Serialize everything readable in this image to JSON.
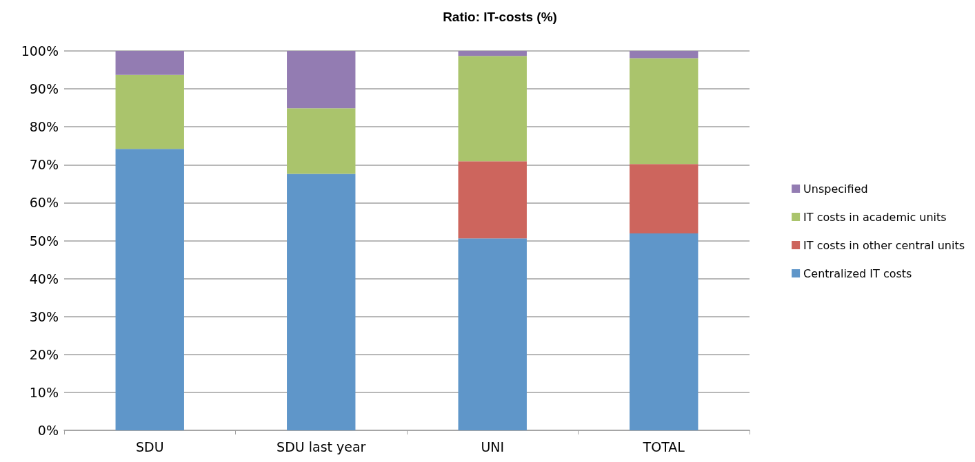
{
  "chart_data": {
    "type": "bar",
    "title": "Ratio: IT-costs (%)",
    "stacked": true,
    "categories": [
      "SDU",
      "SDU last year",
      "UNI",
      "TOTAL"
    ],
    "series": [
      {
        "name": "Centralized IT costs",
        "color": "#5f96c9",
        "values": [
          74.2,
          67.6,
          50.6,
          51.9
        ]
      },
      {
        "name": "IT costs in other central units",
        "color": "#cd655d",
        "values": [
          0,
          0,
          20.3,
          18.3
        ]
      },
      {
        "name": "IT costs in academic units",
        "color": "#aac46c",
        "values": [
          19.5,
          17.3,
          27.8,
          27.9
        ]
      },
      {
        "name": "Unspecified",
        "color": "#937cb2",
        "values": [
          6.3,
          15.1,
          1.3,
          1.9
        ]
      }
    ],
    "ylim": [
      0,
      100
    ],
    "yticks": [
      {
        "value": 0,
        "label": "0%"
      },
      {
        "value": 10,
        "label": "10%"
      },
      {
        "value": 20,
        "label": "20%"
      },
      {
        "value": 30,
        "label": "30%"
      },
      {
        "value": 40,
        "label": "40%"
      },
      {
        "value": 50,
        "label": "50%"
      },
      {
        "value": 60,
        "label": "60%"
      },
      {
        "value": 70,
        "label": "70%"
      },
      {
        "value": 80,
        "label": "80%"
      },
      {
        "value": 90,
        "label": "90%"
      },
      {
        "value": 100,
        "label": "100%"
      }
    ],
    "grid": "y",
    "legend": "right"
  }
}
